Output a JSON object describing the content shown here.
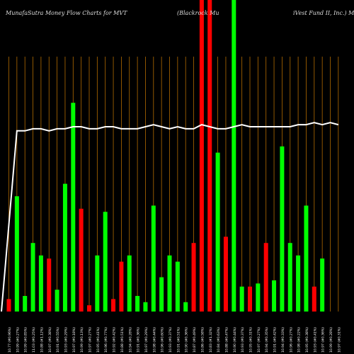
{
  "header": {
    "left": "MunafaSutra  Money Flow  Charts for MVT",
    "middle": "(Blackrock Mu",
    "right": "iVest Fund II,  Inc.) Muni"
  },
  "colors": {
    "background": "#000000",
    "buy": "#00ff00",
    "sell": "#ff0000",
    "grid": "#b36b00",
    "line": "#ffffff"
  },
  "chart_data": {
    "type": "bar",
    "title": "MunafaSutra  Money Flow  Charts for MVT (Blackrock MuniVest Fund II, Inc.) Muni",
    "value_unit": "relative money flow (0–100, 100 = tallest visible bar)",
    "categories": [
      "10.77 (#0.96%)",
      "10.99 (#0.27%)",
      "10.99 (#0.85%)",
      "11.03 (#0.25%)",
      "10.88 (#1.12%)",
      "10.97 (#0.38%)",
      "10.91 (#0.55%)",
      "10.93 (#0.29%)",
      "10.97 (#0.18%)",
      "10.99 (#0.13%)",
      "10.97 (#0.27%)",
      "10.95 (#0.41%)",
      "10.96 (#0.77%)",
      "10.92 (#0.42%)",
      "10.88 (#0.51%)",
      "10.94 (#0.28%)",
      "10.91 (#0.36%)",
      "10.97 (#0.29%)",
      "10.98 (#0.44%)",
      "10.96 (#0.60%)",
      "10.93 (#0.37%)",
      "10.91 (#0.51%)",
      "10.90 (#0.36%)",
      "10.87 (#0.49%)",
      "10.86 (#0.58%)",
      "10.83 (#1.32%)",
      "10.84 (#0.63%)",
      "10.88 (#0.47%)",
      "10.90 (#0.44%)",
      "10.93 (#0.37%)",
      "10.95 (#0.31%)",
      "10.97 (#0.27%)",
      "10.94 (#0.35%)",
      "10.91 (#0.42%)",
      "10.94 (#0.33%)",
      "10.96 (#0.27%)",
      "10.98 (#0.22%)",
      "10.95 (#0.38%)",
      "10.93 (#0.41%)",
      "10.97 (#0.36%)",
      "10.99 (#0.28%)",
      "10.97 (#0.31%)"
    ],
    "values": [
      4,
      37,
      5,
      22,
      18,
      17,
      7,
      41,
      67,
      33,
      2,
      18,
      32,
      4,
      16,
      18,
      5,
      3,
      34,
      11,
      18,
      16,
      3,
      22,
      100,
      100,
      51,
      24,
      100,
      8,
      8,
      9,
      22,
      10,
      53,
      22,
      18,
      34,
      8,
      17,
      0,
      0
    ],
    "directions": [
      "sell",
      "buy",
      "buy",
      "buy",
      "buy",
      "sell",
      "buy",
      "buy",
      "buy",
      "sell",
      "sell",
      "buy",
      "buy",
      "sell",
      "sell",
      "buy",
      "buy",
      "buy",
      "buy",
      "buy",
      "buy",
      "buy",
      "buy",
      "sell",
      "sell",
      "sell",
      "buy",
      "sell",
      "buy",
      "buy",
      "sell",
      "buy",
      "sell",
      "buy",
      "buy",
      "buy",
      "buy",
      "buy",
      "sell",
      "buy",
      "buy",
      "buy"
    ],
    "price_line": [
      0,
      88,
      88,
      89,
      89,
      88,
      89,
      89,
      90,
      90,
      89,
      89,
      90,
      90,
      89,
      89,
      89,
      90,
      91,
      90,
      89,
      90,
      89,
      89,
      91,
      90,
      89,
      89,
      90,
      91,
      90,
      90,
      90,
      90,
      90,
      90,
      91,
      91,
      92,
      91,
      92,
      91
    ],
    "ylim": [
      0,
      100
    ],
    "grid": true
  }
}
